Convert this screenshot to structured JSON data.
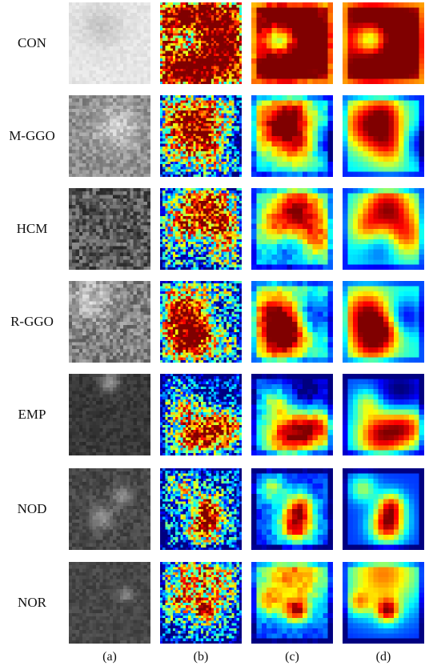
{
  "figure": {
    "rows": [
      {
        "label": "CON"
      },
      {
        "label": "M-GGO"
      },
      {
        "label": "HCM"
      },
      {
        "label": "R-GGO"
      },
      {
        "label": "EMP"
      },
      {
        "label": "NOD"
      },
      {
        "label": "NOR"
      }
    ],
    "columns": [
      {
        "label": "(a)"
      },
      {
        "label": "(b)"
      },
      {
        "label": "(c)"
      },
      {
        "label": "(d)"
      }
    ]
  }
}
